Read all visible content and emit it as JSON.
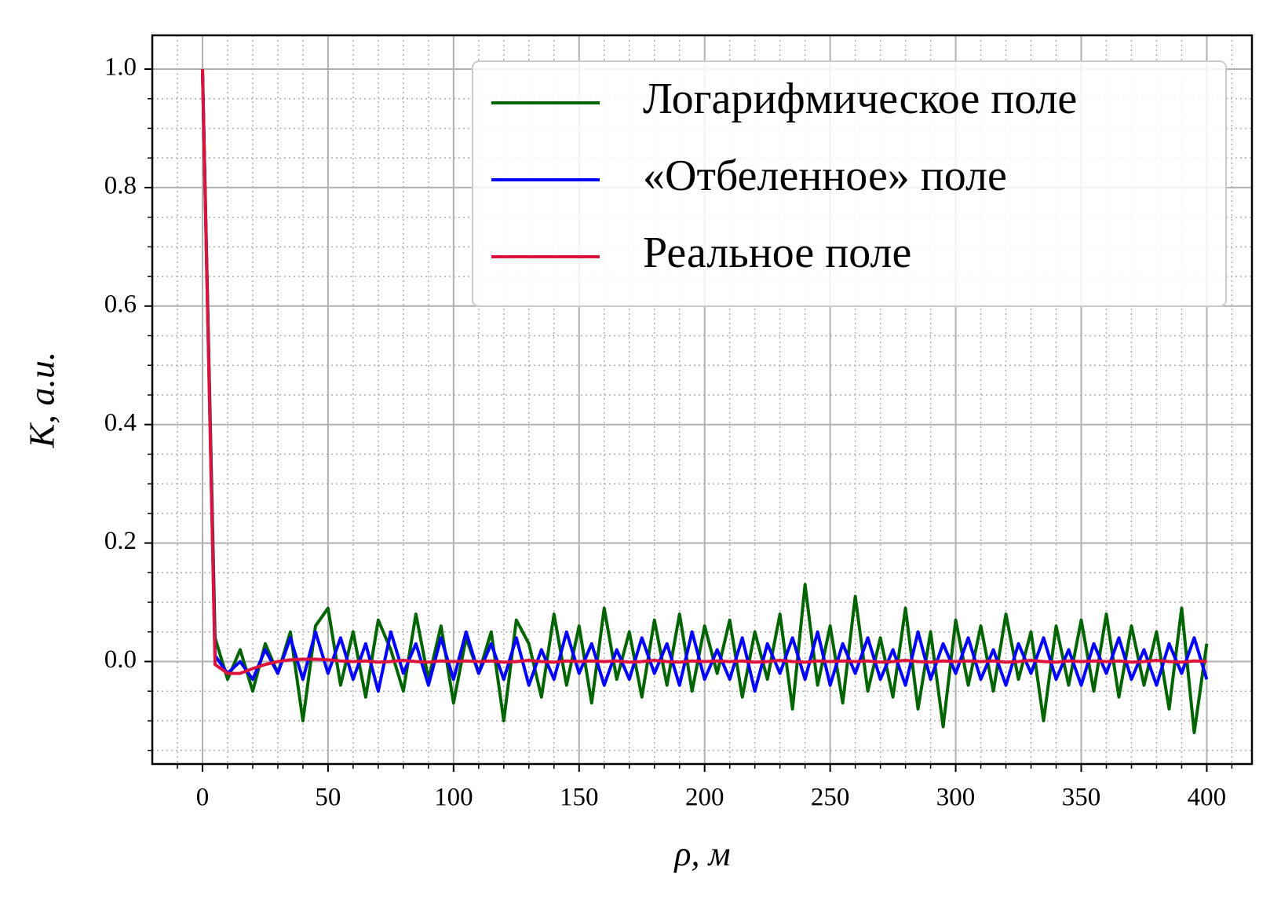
{
  "chart_data": {
    "type": "line",
    "xlabel": "ρ, м",
    "ylabel": "K, a.u.",
    "x": [
      0,
      5,
      10,
      15,
      20,
      25,
      30,
      35,
      40,
      45,
      50,
      55,
      60,
      65,
      70,
      75,
      80,
      85,
      90,
      95,
      100,
      105,
      110,
      115,
      120,
      125,
      130,
      135,
      140,
      145,
      150,
      155,
      160,
      165,
      170,
      175,
      180,
      185,
      190,
      195,
      200,
      205,
      210,
      215,
      220,
      225,
      230,
      235,
      240,
      245,
      250,
      255,
      260,
      265,
      270,
      275,
      280,
      285,
      290,
      295,
      300,
      305,
      310,
      315,
      320,
      325,
      330,
      335,
      340,
      345,
      350,
      355,
      360,
      365,
      370,
      375,
      380,
      385,
      390,
      395,
      400
    ],
    "series": [
      {
        "name": "Логарифмическое поле",
        "color": "#006400",
        "values": [
          1.0,
          0.04,
          -0.03,
          0.02,
          -0.05,
          0.03,
          -0.02,
          0.05,
          -0.1,
          0.06,
          0.09,
          -0.04,
          0.05,
          -0.06,
          0.07,
          0.02,
          -0.05,
          0.08,
          -0.03,
          0.06,
          -0.07,
          0.04,
          -0.02,
          0.05,
          -0.1,
          0.07,
          0.03,
          -0.06,
          0.08,
          -0.04,
          0.06,
          -0.07,
          0.09,
          -0.03,
          0.05,
          -0.06,
          0.07,
          -0.04,
          0.08,
          -0.05,
          0.06,
          -0.02,
          0.07,
          -0.06,
          0.05,
          -0.03,
          0.08,
          -0.08,
          0.13,
          -0.04,
          0.06,
          -0.07,
          0.11,
          -0.05,
          0.04,
          -0.06,
          0.09,
          -0.08,
          0.05,
          -0.11,
          0.07,
          -0.04,
          0.06,
          -0.05,
          0.08,
          -0.03,
          0.05,
          -0.1,
          0.06,
          -0.04,
          0.07,
          -0.05,
          0.08,
          -0.06,
          0.06,
          -0.04,
          0.05,
          -0.08,
          0.09,
          -0.12,
          0.03
        ]
      },
      {
        "name": "«Отбеленное» поле",
        "color": "#0000ff",
        "values": [
          1.0,
          0.01,
          -0.02,
          0.0,
          -0.03,
          0.02,
          -0.02,
          0.04,
          -0.03,
          0.05,
          -0.02,
          0.04,
          -0.03,
          0.03,
          -0.05,
          0.05,
          -0.02,
          0.03,
          -0.04,
          0.04,
          -0.03,
          0.05,
          -0.02,
          0.03,
          -0.03,
          0.04,
          -0.04,
          0.02,
          -0.03,
          0.05,
          -0.02,
          0.03,
          -0.04,
          0.02,
          -0.03,
          0.04,
          -0.02,
          0.03,
          -0.04,
          0.05,
          -0.03,
          0.02,
          -0.03,
          0.04,
          -0.05,
          0.03,
          -0.02,
          0.04,
          -0.03,
          0.05,
          -0.04,
          0.03,
          -0.02,
          0.04,
          -0.03,
          0.02,
          -0.04,
          0.05,
          -0.03,
          0.03,
          -0.02,
          0.04,
          -0.03,
          0.02,
          -0.04,
          0.03,
          -0.02,
          0.04,
          -0.03,
          0.02,
          -0.04,
          0.03,
          -0.02,
          0.04,
          -0.03,
          0.02,
          -0.04,
          0.03,
          -0.02,
          0.04,
          -0.03
        ]
      },
      {
        "name": "Реальное поле",
        "color": "#dc143c",
        "values": [
          1.0,
          -0.005,
          -0.02,
          -0.02,
          -0.012,
          -0.005,
          0.0,
          0.003,
          0.004,
          0.004,
          0.003,
          0.001,
          0.0,
          0.001,
          -0.001,
          0.0,
          0.002,
          0.0,
          -0.001,
          0.001,
          0.0,
          0.001,
          0.0,
          0.001,
          -0.001,
          0.0,
          0.002,
          0.0,
          -0.001,
          0.001,
          0.0,
          0.001,
          0.0,
          0.001,
          -0.001,
          0.0,
          0.002,
          0.0,
          -0.001,
          0.001,
          0.0,
          0.001,
          0.0,
          0.001,
          -0.001,
          0.0,
          0.002,
          0.0,
          -0.001,
          0.001,
          0.0,
          0.001,
          0.0,
          0.001,
          -0.001,
          0.0,
          0.002,
          0.0,
          -0.001,
          0.001,
          0.0,
          0.001,
          0.0,
          0.001,
          -0.001,
          0.0,
          0.002,
          0.0,
          -0.001,
          0.001,
          0.0,
          0.001,
          0.0,
          0.001,
          -0.001,
          0.0,
          0.002,
          0.0,
          -0.001,
          0.001,
          0.0
        ]
      }
    ],
    "xlim": [
      -20,
      418
    ],
    "ylim": [
      -0.173,
      1.057
    ],
    "xticks": [
      0,
      50,
      100,
      150,
      200,
      250,
      300,
      350,
      400
    ],
    "yticks": [
      {
        "value": 0,
        "label": "0.0"
      },
      0.2,
      0.4,
      0.6,
      0.8,
      {
        "value": 1,
        "label": "1.0"
      }
    ],
    "xminor_ticks": [
      -10,
      10,
      20,
      30,
      40,
      60,
      70,
      80,
      90,
      110,
      120,
      130,
      140,
      160,
      170,
      180,
      190,
      210,
      220,
      230,
      240,
      260,
      270,
      280,
      290,
      310,
      320,
      330,
      340,
      360,
      370,
      380,
      390,
      410
    ],
    "yminor_ticks": [
      -0.15,
      -0.1,
      -0.05,
      0.05,
      0.1,
      0.15,
      0.25,
      0.3,
      0.35,
      0.45,
      0.5,
      0.55,
      0.65,
      0.7,
      0.75,
      0.85,
      0.9,
      0.95
    ],
    "grid": true,
    "legend": "upper right"
  }
}
